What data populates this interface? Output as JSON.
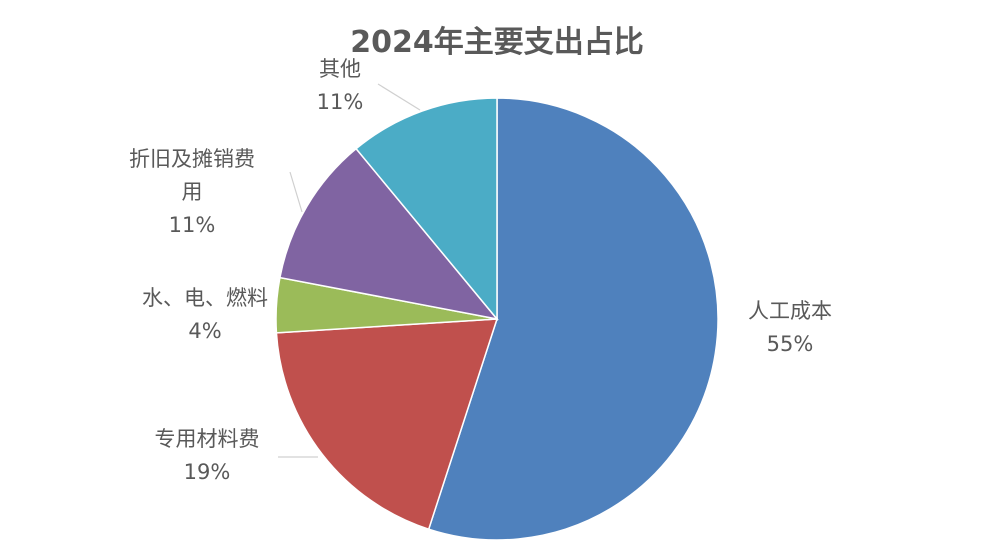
{
  "chart_data": {
    "type": "pie",
    "title": "2024年主要支出占比",
    "slices": [
      {
        "label": "人工成本",
        "value": 55,
        "value_label": "55%",
        "color": "#4f81bd"
      },
      {
        "label": "专用材料费",
        "value": 19,
        "value_label": "19%",
        "color": "#c0504d"
      },
      {
        "label": "水、电、燃料",
        "value": 4,
        "value_label": "4%",
        "color": "#9bbb59"
      },
      {
        "label": "折旧及摊销费用",
        "value": 11,
        "value_label": "11%",
        "color": "#8064a2"
      },
      {
        "label": "其他",
        "value": 11,
        "value_label": "11%",
        "color": "#4bacc6"
      }
    ],
    "legend": "none"
  }
}
